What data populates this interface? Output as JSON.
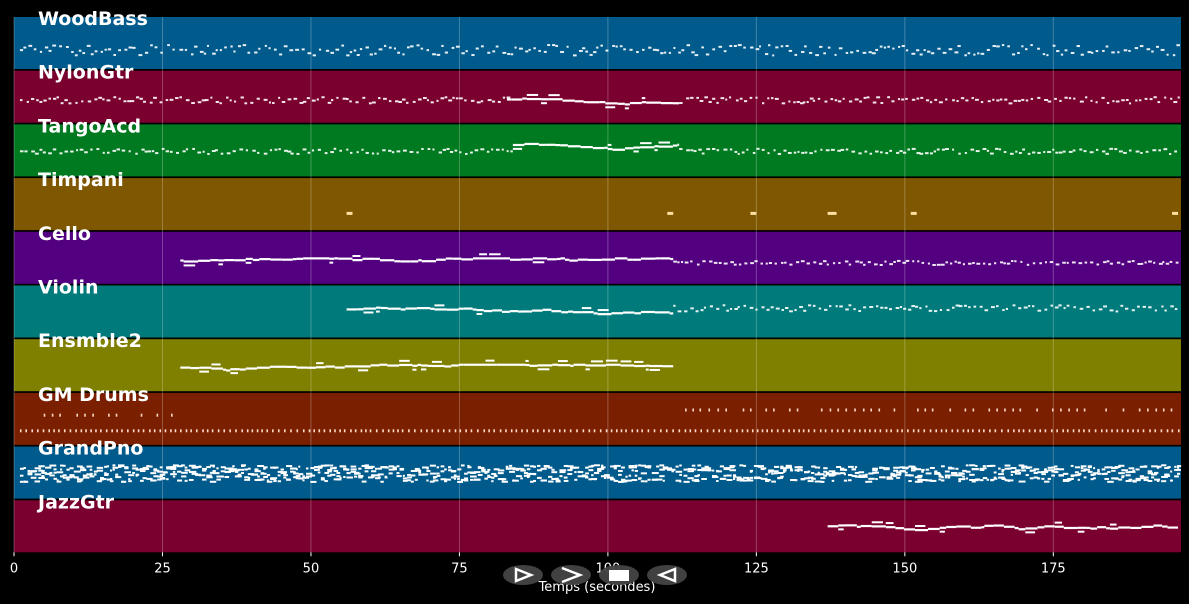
{
  "chart_data": {
    "type": "piano-roll",
    "xlabel": "Temps (secondes)",
    "xlim": [
      0,
      196.5
    ],
    "xticks": [
      0,
      25,
      50,
      75,
      100,
      125,
      150,
      175
    ],
    "grid": true,
    "tracks": [
      {
        "name": "WoodBass",
        "color": "#005a8c",
        "segments": [
          {
            "from": 1,
            "to": 196,
            "kind": "sparse",
            "y": 0.62,
            "spread": 0.1
          }
        ]
      },
      {
        "name": "NylonGtr",
        "color": "#7a0030",
        "segments": [
          {
            "from": 1,
            "to": 83,
            "kind": "sparse",
            "y": 0.55,
            "spread": 0.06
          },
          {
            "from": 83,
            "to": 112,
            "kind": "line",
            "y": 0.55,
            "spread": 0.08
          },
          {
            "from": 112,
            "to": 196,
            "kind": "sparse",
            "y": 0.55,
            "spread": 0.06
          }
        ]
      },
      {
        "name": "TangoAcd",
        "color": "#007a20",
        "segments": [
          {
            "from": 1,
            "to": 84,
            "kind": "sparse",
            "y": 0.5,
            "spread": 0.05
          },
          {
            "from": 84,
            "to": 112,
            "kind": "line",
            "y": 0.4,
            "spread": 0.1
          },
          {
            "from": 112,
            "to": 196,
            "kind": "sparse",
            "y": 0.5,
            "spread": 0.05
          }
        ]
      },
      {
        "name": "Timpani",
        "color": "#7f5700",
        "segments": [
          {
            "from": 56,
            "to": 57,
            "kind": "dots",
            "y": 0.65,
            "spread": 0
          },
          {
            "from": 110,
            "to": 111,
            "kind": "dots",
            "y": 0.65,
            "spread": 0
          },
          {
            "from": 124,
            "to": 125,
            "kind": "dots",
            "y": 0.65,
            "spread": 0
          },
          {
            "from": 137,
            "to": 138.5,
            "kind": "dots",
            "y": 0.65,
            "spread": 0
          },
          {
            "from": 151,
            "to": 152,
            "kind": "dots",
            "y": 0.65,
            "spread": 0
          },
          {
            "from": 195,
            "to": 196,
            "kind": "dots",
            "y": 0.65,
            "spread": 0
          }
        ]
      },
      {
        "name": "Cello",
        "color": "#520080",
        "segments": [
          {
            "from": 28,
            "to": 111,
            "kind": "line",
            "y": 0.55,
            "spread": 0.06
          },
          {
            "from": 111,
            "to": 196,
            "kind": "sparse",
            "y": 0.58,
            "spread": 0.04
          }
        ]
      },
      {
        "name": "Violin",
        "color": "#007a7a",
        "segments": [
          {
            "from": 56,
            "to": 111,
            "kind": "line",
            "y": 0.45,
            "spread": 0.08
          },
          {
            "from": 111,
            "to": 196,
            "kind": "sparse",
            "y": 0.42,
            "spread": 0.06
          }
        ]
      },
      {
        "name": "Ensmble2",
        "color": "#7f7f00",
        "segments": [
          {
            "from": 28,
            "to": 111,
            "kind": "line",
            "y": 0.55,
            "spread": 0.08
          }
        ]
      },
      {
        "name": "GM Drums",
        "color": "#7a2000",
        "segments": [
          {
            "from": 5,
            "to": 28,
            "kind": "dashes",
            "y": 0.4,
            "spread": 0
          },
          {
            "from": 113,
            "to": 196,
            "kind": "dashes",
            "y": 0.3,
            "spread": 0
          },
          {
            "from": 1,
            "to": 196,
            "kind": "dashes",
            "y": 0.7,
            "spread": 0
          }
        ]
      },
      {
        "name": "GrandPno",
        "color": "#005a8c",
        "segments": [
          {
            "from": 1,
            "to": 196,
            "kind": "dense",
            "y": 0.5,
            "spread": 0.16
          }
        ]
      },
      {
        "name": "JazzGtr",
        "color": "#7a0030",
        "segments": [
          {
            "from": 137,
            "to": 196,
            "kind": "line",
            "y": 0.5,
            "spread": 0.12
          }
        ]
      }
    ]
  },
  "controls": {
    "play_icon": "play-triangle-icon",
    "forward_icon": "forward-chevron-icon",
    "stop_icon": "stop-square-icon",
    "back_icon": "back-triangle-icon"
  }
}
